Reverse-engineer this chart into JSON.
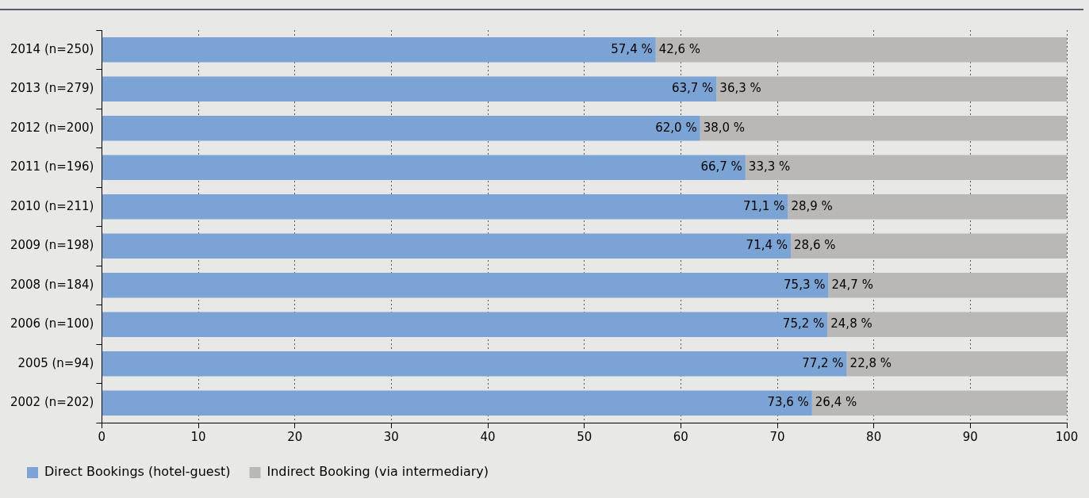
{
  "chart_data": {
    "type": "bar",
    "orientation": "horizontal",
    "stacked": true,
    "categories": [
      "2014 (n=250)",
      "2013 (n=279)",
      "2012 (n=200)",
      "2011 (n=196)",
      "2010 (n=211)",
      "2009 (n=198)",
      "2008 (n=184)",
      "2006 (n=100)",
      "2005 (n=94)",
      "2002 (n=202)"
    ],
    "series": [
      {
        "name": "Direct Bookings (hotel-guest)",
        "color": "#7ba3d4",
        "values": [
          57.4,
          63.7,
          62.0,
          66.7,
          71.1,
          71.4,
          75.3,
          75.2,
          77.2,
          73.6
        ],
        "value_labels": [
          "57,4 %",
          "63,7 %",
          "62,0 %",
          "66,7 %",
          "71,1 %",
          "71,4 %",
          "75,3 %",
          "75,2 %",
          "77,2 %",
          "73,6 %"
        ]
      },
      {
        "name": "Indirect Booking (via intermediary)",
        "color": "#b9b8b6",
        "values": [
          42.6,
          36.3,
          38.0,
          33.3,
          28.9,
          28.6,
          24.7,
          24.8,
          22.8,
          26.4
        ],
        "value_labels": [
          "42,6 %",
          "36,3 %",
          "38,0 %",
          "33,3 %",
          "28,9 %",
          "28,6 %",
          "24,7 %",
          "24,8 %",
          "22,8 %",
          "26,4 %"
        ]
      }
    ],
    "xlim": [
      0,
      100
    ],
    "xticks": [
      0,
      10,
      20,
      30,
      40,
      50,
      60,
      70,
      80,
      90,
      100
    ],
    "grid": "x",
    "legend": "bottom"
  }
}
